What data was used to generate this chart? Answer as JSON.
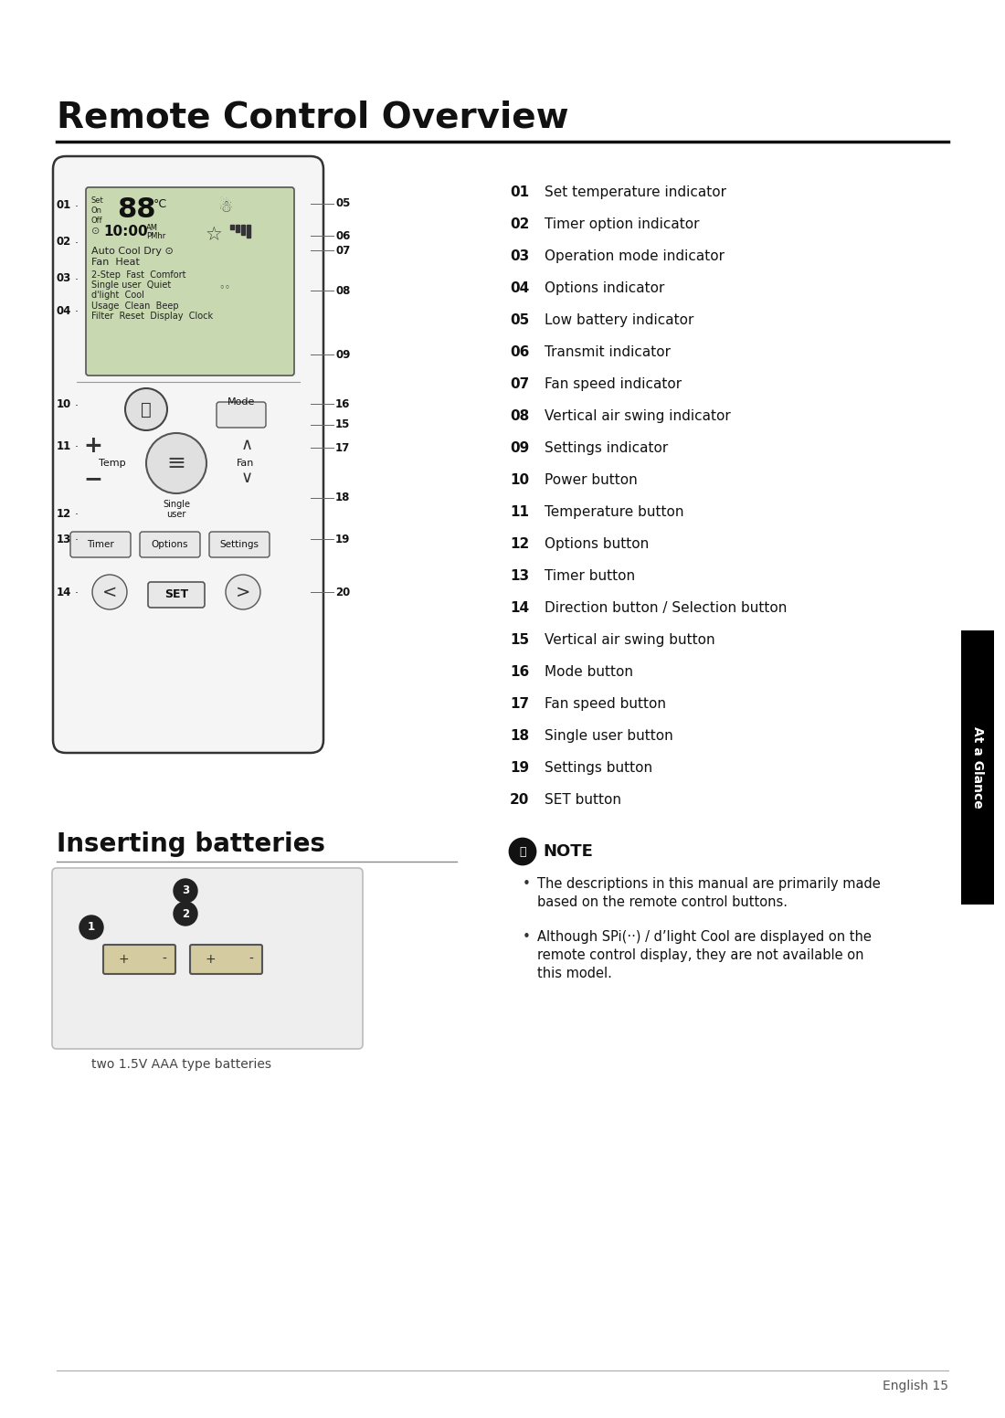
{
  "title": "Remote Control Overview",
  "bg_color": "#ffffff",
  "items": [
    {
      "num": "01",
      "desc": "Set temperature indicator"
    },
    {
      "num": "02",
      "desc": "Timer option indicator"
    },
    {
      "num": "03",
      "desc": "Operation mode indicator"
    },
    {
      "num": "04",
      "desc": "Options indicator"
    },
    {
      "num": "05",
      "desc": "Low battery indicator"
    },
    {
      "num": "06",
      "desc": "Transmit indicator"
    },
    {
      "num": "07",
      "desc": "Fan speed indicator"
    },
    {
      "num": "08",
      "desc": "Vertical air swing indicator"
    },
    {
      "num": "09",
      "desc": "Settings indicator"
    },
    {
      "num": "10",
      "desc": "Power button"
    },
    {
      "num": "11",
      "desc": "Temperature button"
    },
    {
      "num": "12",
      "desc": "Options button"
    },
    {
      "num": "13",
      "desc": "Timer button"
    },
    {
      "num": "14",
      "desc": "Direction button / Selection button"
    },
    {
      "num": "15",
      "desc": "Vertical air swing button"
    },
    {
      "num": "16",
      "desc": "Mode button"
    },
    {
      "num": "17",
      "desc": "Fan speed button"
    },
    {
      "num": "18",
      "desc": "Single user button"
    },
    {
      "num": "19",
      "desc": "Settings button"
    },
    {
      "num": "20",
      "desc": "SET button"
    }
  ],
  "inserting_batteries_title": "Inserting batteries",
  "batteries_caption": "two 1.5V AAA type batteries",
  "note_title": "NOTE",
  "note_bullets": [
    "The descriptions in this manual are primarily made based on the remote control buttons.",
    "Although SPi(··) / d’light Cool are displayed on the remote control display, they are not available on this model."
  ],
  "sidebar_text": "At a Glance",
  "sidebar_bg": "#000000",
  "sidebar_text_color": "#ffffff",
  "footer_text": "English 15"
}
